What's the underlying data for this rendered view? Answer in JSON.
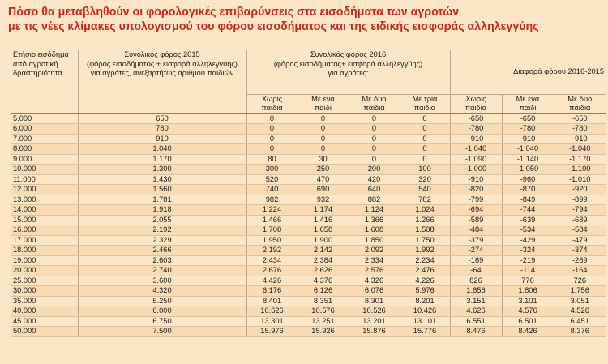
{
  "title": {
    "line1": "Πόσο θα μεταβληθούν οι φορολογικές επιβαρύνσεις στα εισοδήματα των αγροτών",
    "line2": "με τις νέες κλίμακες υπολογισμού του φόρου εισοδήματος και της ειδικής εισφοράς αλληλεγγύης"
  },
  "headers": {
    "income": [
      "Ετήσιο εισόδημα",
      "από αγροτική",
      "δραστηριότητα"
    ],
    "tax2015": [
      "Συνολικός φόρος 2015",
      "(φόρος εισοδήματος + εισφορά αλληλεγγύης)",
      "για αγρότες, ανεξαρτήτως αριθμού παιδιών"
    ],
    "tax2016": [
      "Συνολικός φόρος 2016",
      "(φόρος εισοδήματος+ εισφορά αλληλεγγύης)",
      "για αγρότες:"
    ],
    "diff": "Διαφορά φόρου 2016-2015",
    "children": [
      [
        "Χωρίς",
        "παιδιά"
      ],
      [
        "Με ένα",
        "παιδί"
      ],
      [
        "Με δύο",
        "παιδιά"
      ],
      [
        "Με τρία",
        "παιδιά"
      ]
    ],
    "diff_children": [
      [
        "Χωρίς",
        "παιδιά"
      ],
      [
        "Με ένα",
        "παιδί"
      ],
      [
        "Με δύο",
        "παιδιά"
      ]
    ]
  },
  "rows": [
    [
      "5.000",
      "650",
      "0",
      "0",
      "0",
      "0",
      "-650",
      "-650",
      "-650"
    ],
    [
      "6.000",
      "780",
      "0",
      "0",
      "0",
      "0",
      "-780",
      "-780",
      "-780"
    ],
    [
      "7.000",
      "910",
      "0",
      "0",
      "0",
      "0",
      "-910",
      "-910",
      "-910"
    ],
    [
      "8.000",
      "1.040",
      "0",
      "0",
      "0",
      "0",
      "-1.040",
      "-1.040",
      "-1.040"
    ],
    [
      "9.000",
      "1.170",
      "80",
      "30",
      "0",
      "0",
      "-1.090",
      "-1.140",
      "-1.170"
    ],
    [
      "10.000",
      "1.300",
      "300",
      "250",
      "200",
      "100",
      "-1.000",
      "-1.050",
      "-1.100"
    ],
    [
      "11.000",
      "1.430",
      "520",
      "470",
      "420",
      "320",
      "-910",
      "-960",
      "-1.010"
    ],
    [
      "12.000",
      "1.560",
      "740",
      "690",
      "640",
      "540",
      "-820",
      "-870",
      "-920"
    ],
    [
      "13.000",
      "1.781",
      "982",
      "932",
      "882",
      "782",
      "-799",
      "-849",
      "-899"
    ],
    [
      "14.000",
      "1.918",
      "1.224",
      "1.174",
      "1.124",
      "1.024",
      "-694",
      "-744",
      "-794"
    ],
    [
      "15.000",
      "2.055",
      "1.466",
      "1.416",
      "1.366",
      "1.266",
      "-589",
      "-639",
      "-689"
    ],
    [
      "16.000",
      "2.192",
      "1.708",
      "1.658",
      "1.608",
      "1.508",
      "-484",
      "-534",
      "-584"
    ],
    [
      "17.000",
      "2.329",
      "1.950",
      "1.900",
      "1.850",
      "1.750",
      "-379",
      "-429",
      "-479"
    ],
    [
      "18.000",
      "2.466",
      "2.192",
      "2.142",
      "2.092",
      "1.992",
      "-274",
      "-324",
      "-374"
    ],
    [
      "19.000",
      "2.603",
      "2.434",
      "2.384",
      "2.334",
      "2.234",
      "-169",
      "-219",
      "-269"
    ],
    [
      "20.000",
      "2.740",
      "2.676",
      "2.626",
      "2.576",
      "2.476",
      "-64",
      "-114",
      "-164"
    ],
    [
      "25.000",
      "3.600",
      "4.426",
      "4.376",
      "4.326",
      "4.226",
      "826",
      "776",
      "726"
    ],
    [
      "30.000",
      "4.320",
      "6.176",
      "6.126",
      "6.076",
      "5.976",
      "1.856",
      "1.806",
      "1.756"
    ],
    [
      "35.000",
      "5.250",
      "8.401",
      "8.351",
      "8.301",
      "8.201",
      "3.151",
      "3.101",
      "3.051"
    ],
    [
      "40.000",
      "6.000",
      "10.626",
      "10.576",
      "10.526",
      "10.426",
      "4.626",
      "4.576",
      "4.526"
    ],
    [
      "45.000",
      "6.750",
      "13.301",
      "13.251",
      "13.201",
      "13.101",
      "6.551",
      "6.501",
      "6.451"
    ],
    [
      "50.000",
      "7.500",
      "15.976",
      "15.926",
      "15.876",
      "15.776",
      "8.476",
      "8.426",
      "8.376"
    ]
  ],
  "colors": {
    "background": "#fde6c6",
    "title": "#c72a1c"
  }
}
